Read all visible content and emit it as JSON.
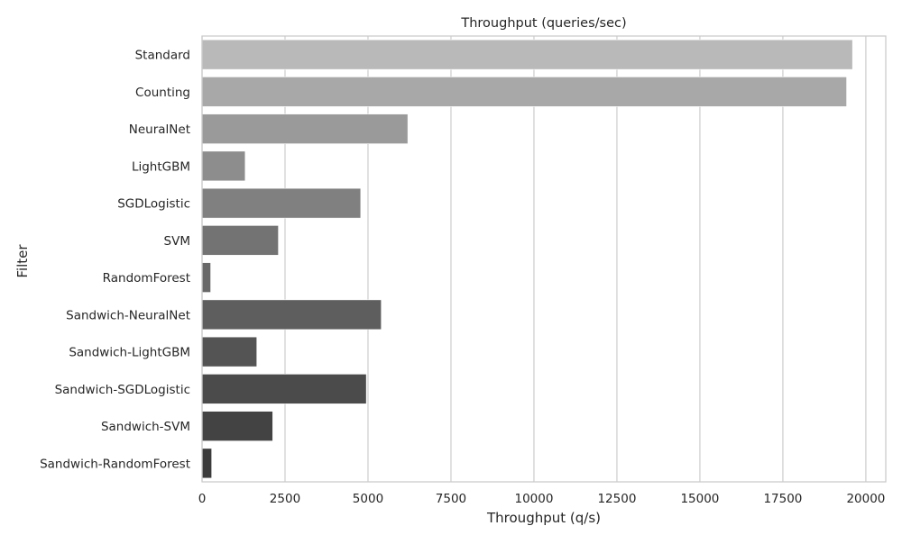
{
  "chart_data": {
    "type": "bar",
    "orientation": "horizontal",
    "title": "Throughput (queries/sec)",
    "xlabel": "Throughput (q/s)",
    "ylabel": "Filter",
    "xlim": [
      0,
      20600
    ],
    "x_ticks": [
      0,
      2500,
      5000,
      7500,
      10000,
      12500,
      15000,
      17500,
      20000
    ],
    "grid": "vertical",
    "legend": "none",
    "categories": [
      "Standard",
      "Counting",
      "NeuralNet",
      "LightGBM",
      "SGDLogistic",
      "SVM",
      "RandomForest",
      "Sandwich-NeuralNet",
      "Sandwich-LightGBM",
      "Sandwich-SGDLogistic",
      "Sandwich-SVM",
      "Sandwich-RandomForest"
    ],
    "values": [
      19600,
      19420,
      6200,
      1300,
      4780,
      2300,
      260,
      5400,
      1650,
      4950,
      2130,
      290
    ],
    "colors": [
      "#b9b9b9",
      "#a8a8a8",
      "#9a9a9a",
      "#8d8d8d",
      "#808080",
      "#737373",
      "#686868",
      "#5e5e5e",
      "#545454",
      "#4b4b4b",
      "#434343",
      "#3b3b3b"
    ],
    "grid_color": "#cccccc",
    "spine_color": "#cccccc"
  }
}
